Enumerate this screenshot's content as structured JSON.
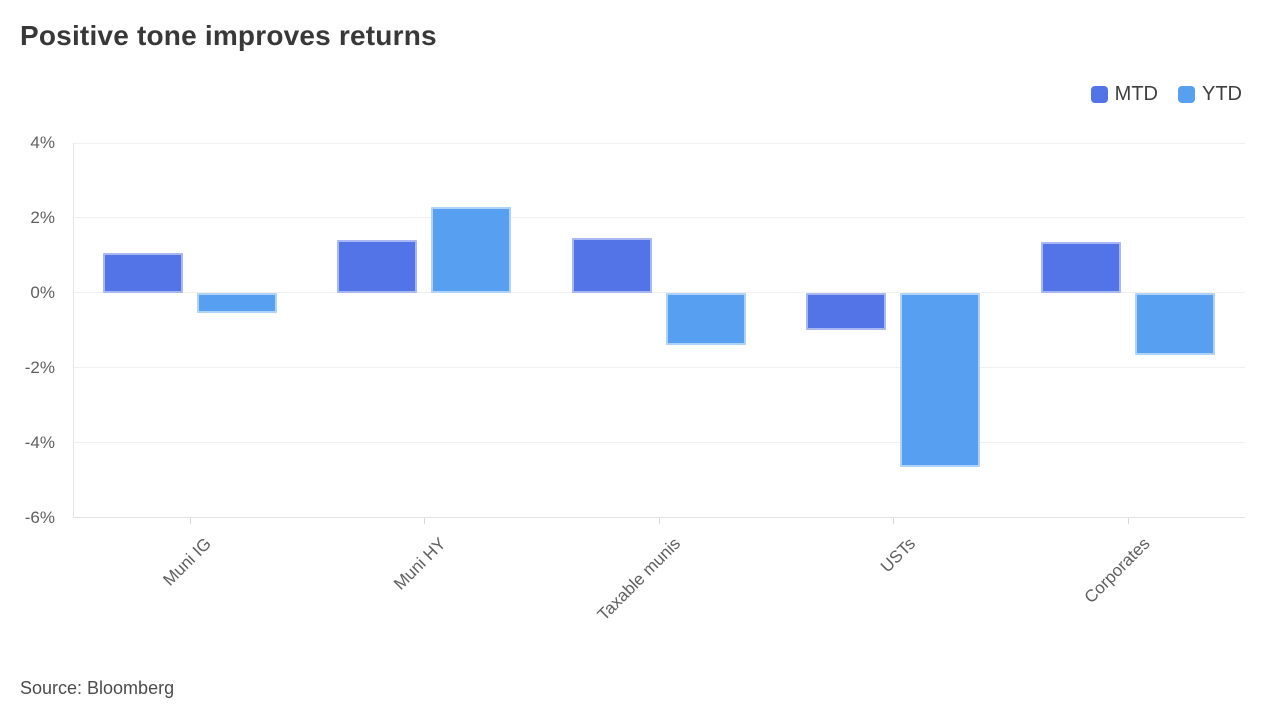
{
  "header": {
    "title": "Positive tone improves returns"
  },
  "footer": {
    "source": "Source: Bloomberg"
  },
  "chart_data": {
    "type": "bar",
    "title": "Positive tone improves returns",
    "categories": [
      "Muni IG",
      "Muni HY",
      "Taxable munis",
      "USTs",
      "Corporates"
    ],
    "series": [
      {
        "name": "MTD",
        "color": "#5374e6",
        "border_color": "#a9b8f3",
        "values": [
          1.05,
          1.4,
          1.45,
          -1.0,
          1.35
        ]
      },
      {
        "name": "YTD",
        "color": "#57a0f1",
        "border_color": "#aed2f8",
        "values": [
          -0.55,
          2.3,
          -1.4,
          -4.65,
          -1.65
        ]
      }
    ],
    "unit": "%",
    "yticks": [
      {
        "value": 4,
        "label": "4%"
      },
      {
        "value": 2,
        "label": "2%"
      },
      {
        "value": 0,
        "label": "0%"
      },
      {
        "value": -2,
        "label": "-2%"
      },
      {
        "value": -4,
        "label": "-4%"
      },
      {
        "value": -6,
        "label": "-6%"
      }
    ],
    "ylim": [
      -6,
      4
    ],
    "grid": "horizontal",
    "legend_position": "top-right",
    "source": "Source: Bloomberg"
  }
}
